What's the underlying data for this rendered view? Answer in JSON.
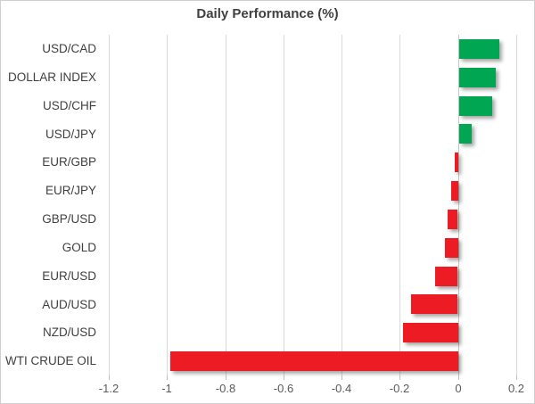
{
  "chart": {
    "title": "Daily Performance (%)"
  },
  "chart_data": {
    "type": "bar",
    "orientation": "horizontal",
    "title": "Daily Performance (%)",
    "categories": [
      "USD/CAD",
      "DOLLAR INDEX",
      "USD/CHF",
      "USD/JPY",
      "EUR/GBP",
      "EUR/JPY",
      "GBP/USD",
      "GOLD",
      "EUR/USD",
      "AUD/USD",
      "NZD/USD",
      "WTI CRUDE OIL"
    ],
    "values": [
      0.137,
      0.125,
      0.112,
      0.042,
      -0.012,
      -0.025,
      -0.035,
      -0.045,
      -0.078,
      -0.16,
      -0.19,
      -0.99
    ],
    "xlabel": "",
    "ylabel": "",
    "xlim": [
      -1.2,
      0.2
    ],
    "x_ticks": [
      -1.2,
      -1,
      -0.8,
      -0.6,
      -0.4,
      -0.2,
      0,
      0.2
    ],
    "x_tick_labels": [
      "-1.2",
      "-1",
      "-0.8",
      "-0.6",
      "-0.4",
      "-0.2",
      "0",
      "0.2"
    ],
    "grid": "vertical-only",
    "legend": "none",
    "colors": {
      "positive": "#00a651",
      "negative": "#ed1c24",
      "gridline": "#d9d9d9",
      "axis_text": "#595959",
      "category_text": "#404040",
      "title_text": "#404040",
      "chart_border": "#d0cece"
    }
  }
}
